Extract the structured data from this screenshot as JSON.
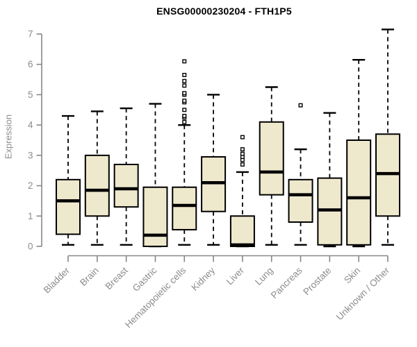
{
  "page": {
    "background": "#ffffff"
  },
  "colors": {
    "box_fill": "#EEE8CD",
    "box_stroke": "#000000",
    "median": "#000000",
    "whisker": "#000000",
    "outlier_stroke": "#000000",
    "outlier_fill": "#ffffff",
    "axis": "#878787",
    "tick_label": "#8c8c8c",
    "title": "#000000"
  },
  "chart_data": {
    "type": "box",
    "title": "ENSG00000230204 - FTH1P5",
    "ylabel": "Expression",
    "xlabel": "",
    "ylim": [
      0,
      7
    ],
    "yticks": [
      0,
      1,
      2,
      3,
      4,
      5,
      6,
      7
    ],
    "grid": false,
    "legend": "none",
    "categories": [
      "Bladder",
      "Brain",
      "Breast",
      "Gastric",
      "Hematopoietic cells",
      "Kidney",
      "Liver",
      "Lung",
      "Pancreas",
      "Prostate",
      "Skin",
      "Unknown / Other"
    ],
    "series": [
      {
        "name": "Bladder",
        "low": 0.05,
        "q1": 0.4,
        "median": 1.5,
        "q3": 2.2,
        "high": 4.3,
        "outliers": []
      },
      {
        "name": "Brain",
        "low": 0.05,
        "q1": 1.0,
        "median": 1.85,
        "q3": 3.0,
        "high": 4.45,
        "outliers": []
      },
      {
        "name": "Breast",
        "low": 0.05,
        "q1": 1.3,
        "median": 1.9,
        "q3": 2.7,
        "high": 4.55,
        "outliers": []
      },
      {
        "name": "Gastric",
        "low": 0.0,
        "q1": 0.0,
        "median": 0.37,
        "q3": 1.95,
        "high": 4.7,
        "outliers": []
      },
      {
        "name": "Hematopoietic cells",
        "low": 0.05,
        "q1": 0.55,
        "median": 1.35,
        "q3": 1.95,
        "high": 4.0,
        "outliers": [
          4.1,
          4.25,
          4.3,
          4.5,
          4.75,
          4.8,
          5.0,
          5.05,
          5.3,
          5.45,
          5.65,
          6.1
        ]
      },
      {
        "name": "Kidney",
        "low": 0.05,
        "q1": 1.15,
        "median": 2.1,
        "q3": 2.95,
        "high": 5.0,
        "outliers": []
      },
      {
        "name": "Liver",
        "low": 0.0,
        "q1": 0.0,
        "median": 0.05,
        "q3": 1.0,
        "high": 2.45,
        "outliers": [
          2.7,
          2.85,
          2.95,
          3.05,
          3.2,
          3.6
        ]
      },
      {
        "name": "Lung",
        "low": 0.05,
        "q1": 1.7,
        "median": 2.45,
        "q3": 4.1,
        "high": 5.25,
        "outliers": []
      },
      {
        "name": "Pancreas",
        "low": 0.05,
        "q1": 0.8,
        "median": 1.7,
        "q3": 2.2,
        "high": 3.2,
        "outliers": [
          4.65
        ]
      },
      {
        "name": "Prostate",
        "low": 0.0,
        "q1": 0.05,
        "median": 1.2,
        "q3": 2.25,
        "high": 4.4,
        "outliers": []
      },
      {
        "name": "Skin",
        "low": 0.0,
        "q1": 0.05,
        "median": 1.6,
        "q3": 3.5,
        "high": 6.15,
        "outliers": []
      },
      {
        "name": "Unknown / Other",
        "low": 0.05,
        "q1": 1.0,
        "median": 2.4,
        "q3": 3.7,
        "high": 7.15,
        "outliers": []
      }
    ]
  }
}
